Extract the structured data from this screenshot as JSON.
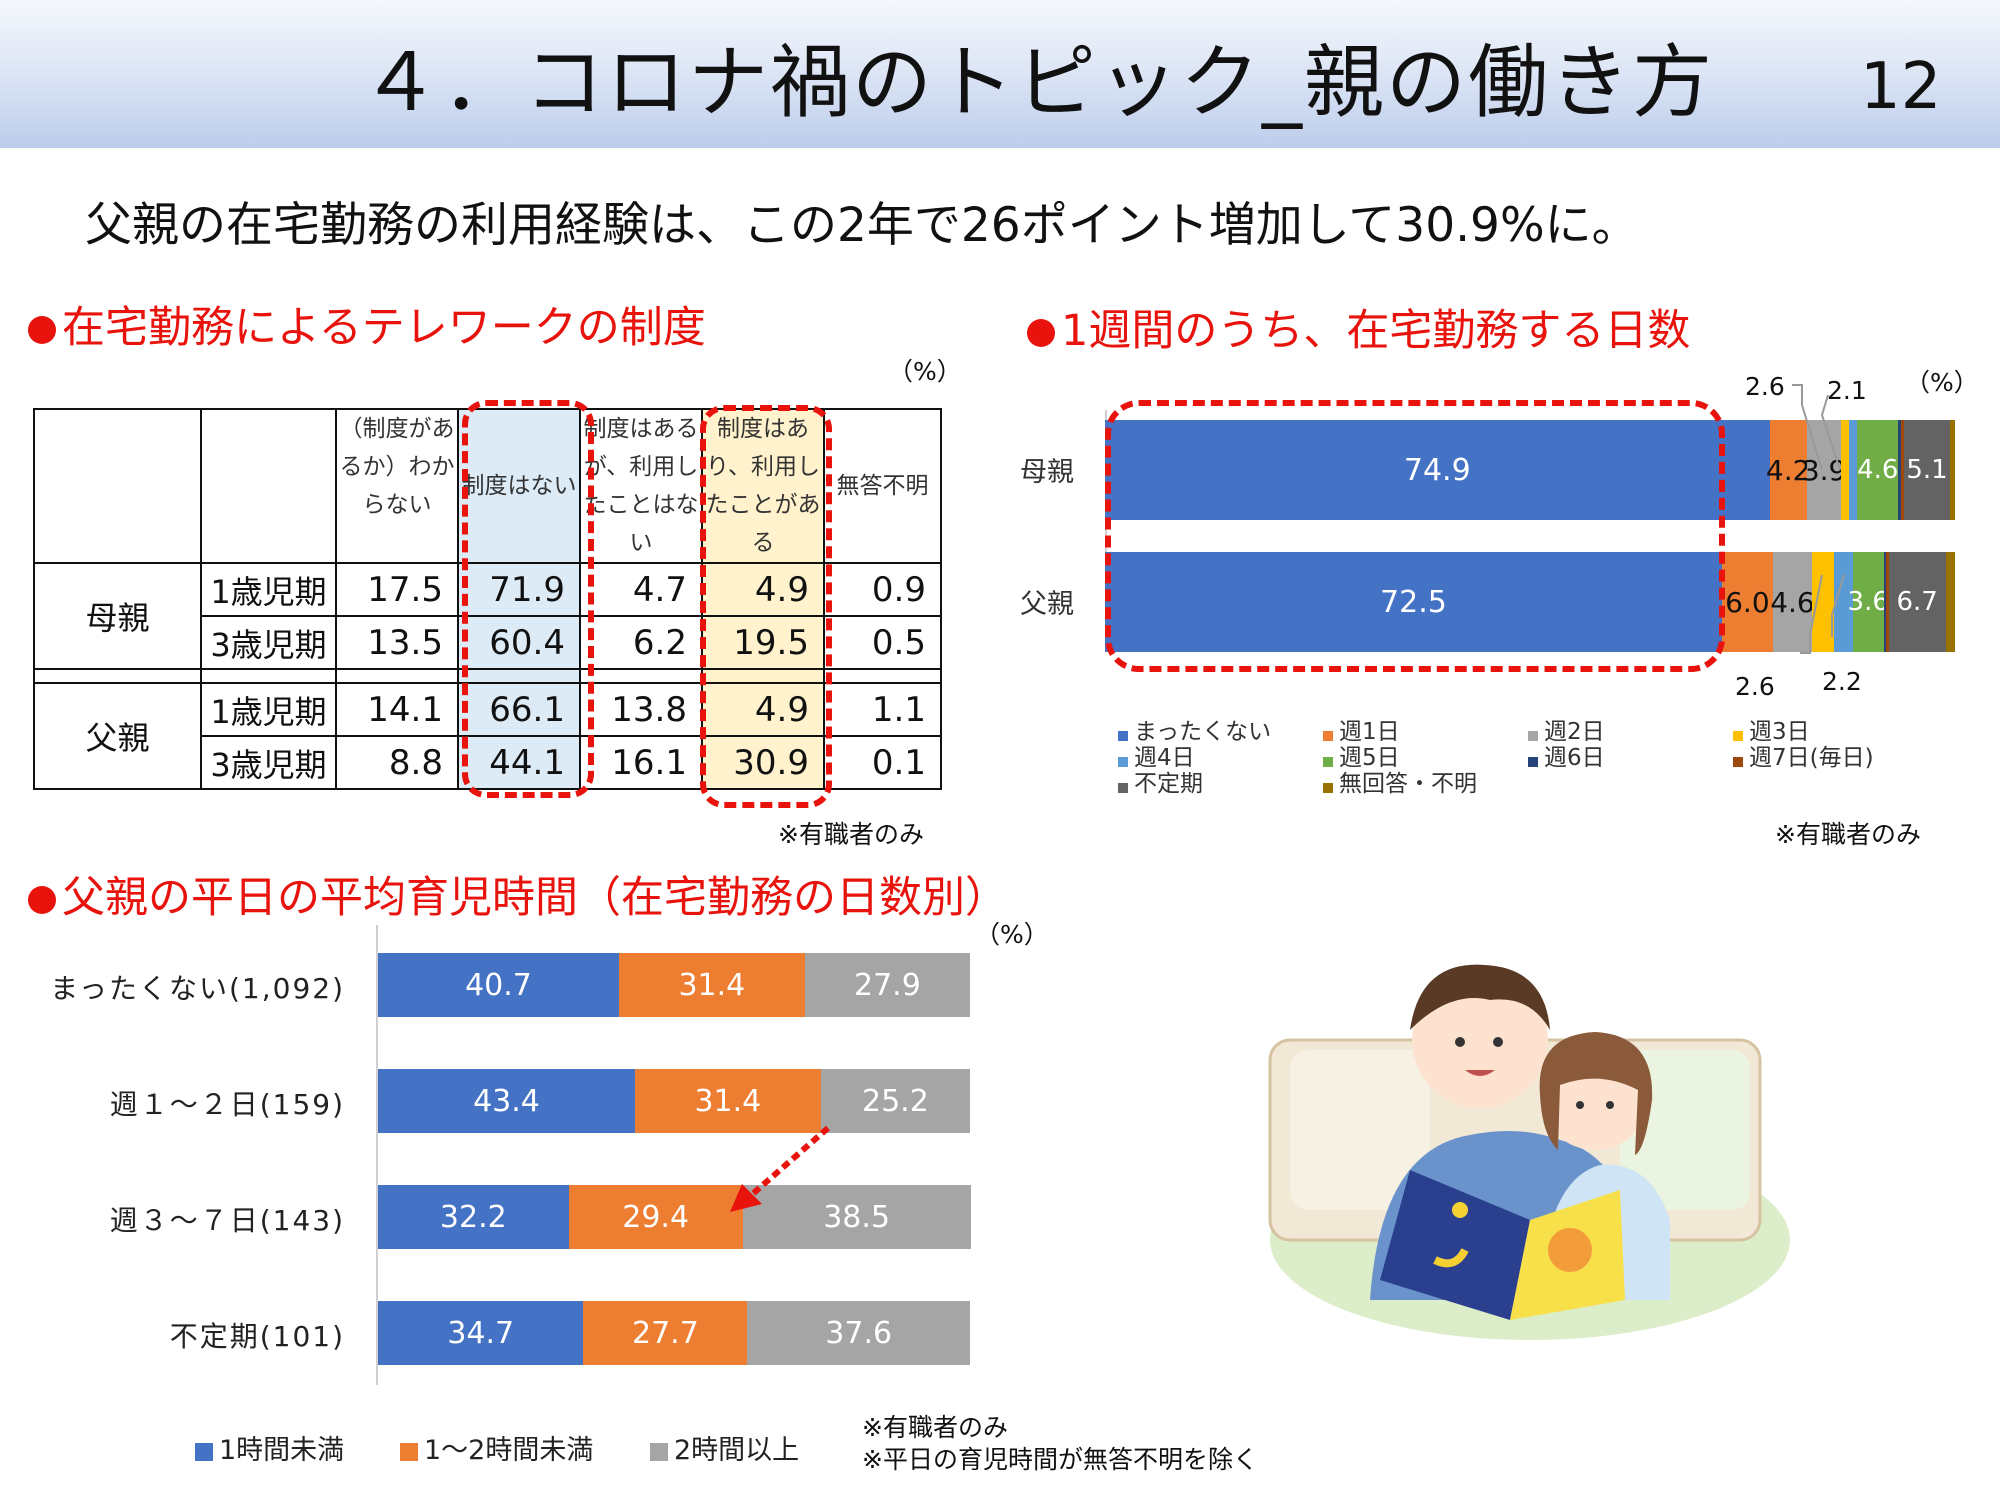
{
  "header": {
    "title": "４．コロナ禍のトピック_親の働き方",
    "page_number": "12"
  },
  "headline": "父親の在宅勤務の利用経験は、この2年で26ポイント増加して30.9%に。",
  "section1": {
    "title": "在宅勤務によるテレワークの制度",
    "unit": "（%）",
    "note": "※有職者のみ",
    "columns": [
      "（制度があるか）わからない",
      "制度はない",
      "制度はあるが、利用したことはない",
      "制度はあり、利用したことがある",
      "無答不明"
    ],
    "groups": [
      {
        "name": "母親",
        "rows": [
          {
            "period": "1歳児期",
            "values": [
              "17.5",
              "71.9",
              "4.7",
              "4.9",
              "0.9"
            ]
          },
          {
            "period": "3歳児期",
            "values": [
              "13.5",
              "60.4",
              "6.2",
              "19.5",
              "0.5"
            ]
          }
        ]
      },
      {
        "name": "父親",
        "rows": [
          {
            "period": "1歳児期",
            "values": [
              "14.1",
              "66.1",
              "13.8",
              "4.9",
              "1.1"
            ]
          },
          {
            "period": "3歳児期",
            "values": [
              "8.8",
              "44.1",
              "16.1",
              "30.9",
              "0.1"
            ]
          }
        ]
      }
    ]
  },
  "section2": {
    "title": "1週間のうち、在宅勤務する日数",
    "unit": "（%）",
    "note": "※有職者のみ",
    "colors": [
      "#4472c4",
      "#ed7d31",
      "#a5a5a5",
      "#ffc000",
      "#5b9bd5",
      "#70ad47",
      "#264478",
      "#9e480e",
      "#636363",
      "#997300"
    ],
    "legend": [
      "まったくない",
      "週1日",
      "週2日",
      "週3日",
      "週4日",
      "週5日",
      "週6日",
      "週7日(毎日)",
      "不定期",
      "無回答・不明"
    ],
    "rows": [
      {
        "label": "母親",
        "values": [
          74.9,
          4.2,
          3.9,
          0.9,
          0.9,
          4.6,
          0.3,
          0.4,
          5.1,
          0.6
        ],
        "labels": [
          "74.9",
          "4.2",
          "3.9",
          "",
          "",
          "4.6",
          "",
          "",
          "5.1",
          ""
        ]
      },
      {
        "label": "父親",
        "values": [
          72.5,
          6.0,
          4.6,
          2.6,
          2.2,
          3.6,
          0.3,
          0.3,
          6.7,
          1.1
        ],
        "labels": [
          "72.5",
          "6.0",
          "4.6",
          "",
          "",
          "3.6",
          "",
          "",
          "6.7",
          ""
        ]
      }
    ],
    "callouts_top": [
      "2.6",
      "2.1"
    ],
    "callouts_bottom": [
      "2.6",
      "2.2"
    ]
  },
  "section3": {
    "title": "父親の平日の平均育児時間（在宅勤務の日数別）",
    "unit": "（%）",
    "notes": [
      "※有職者のみ",
      "※平日の育児時間が無答不明を除く"
    ],
    "colors": [
      "#4472c4",
      "#ed7d31",
      "#a5a5a5"
    ],
    "legend": [
      "1時間未満",
      "1～2時間未満",
      "2時間以上"
    ]
  },
  "chart_data": {
    "type": "bar",
    "stacked": true,
    "orientation": "horizontal",
    "categories": [
      "まったくない(1,092)",
      "週１～２日(159)",
      "週３～７日(143)",
      "不定期(101)"
    ],
    "series": [
      {
        "name": "1時間未満",
        "values": [
          40.7,
          43.4,
          32.2,
          34.7
        ]
      },
      {
        "name": "1～2時間未満",
        "values": [
          31.4,
          31.4,
          29.4,
          27.7
        ]
      },
      {
        "name": "2時間以上",
        "values": [
          27.9,
          25.2,
          38.5,
          37.6
        ]
      }
    ],
    "title": "父親の平日の平均育児時間（在宅勤務の日数別）",
    "xlim": [
      0,
      100
    ],
    "legend_position": "bottom"
  }
}
